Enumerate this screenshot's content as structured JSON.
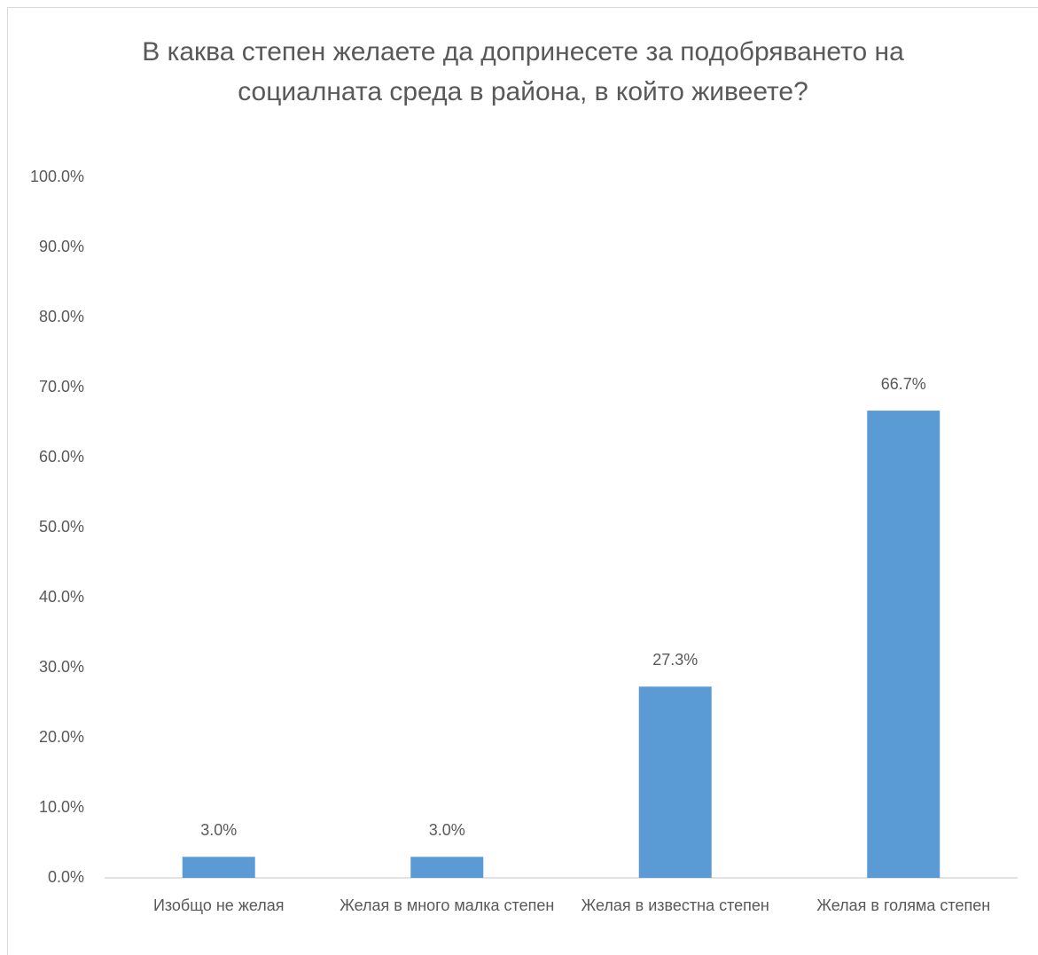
{
  "chart_data": {
    "type": "bar",
    "title": "В каква степен желаете да допринесете за подобряването на социалната среда в района, в който живеете?",
    "categories": [
      "Изобщо не желая",
      "Желая в много малка степен",
      "Желая в известна степен",
      "Желая в голяма степен"
    ],
    "values": [
      3.0,
      3.0,
      27.3,
      66.7
    ],
    "value_labels": [
      "3.0%",
      "3.0%",
      "27.3%",
      "66.7%"
    ],
    "color": "#5b9bd5",
    "ylim": [
      0,
      100
    ],
    "yticks": [
      {
        "value": 0,
        "label": "0.0%"
      },
      {
        "value": 10,
        "label": "10.0%"
      },
      {
        "value": 20,
        "label": "20.0%"
      },
      {
        "value": 30,
        "label": "30.0%"
      },
      {
        "value": 40,
        "label": "40.0%"
      },
      {
        "value": 50,
        "label": "50.0%"
      },
      {
        "value": 60,
        "label": "60.0%"
      },
      {
        "value": 70,
        "label": "70.0%"
      },
      {
        "value": 80,
        "label": "80.0%"
      },
      {
        "value": 90,
        "label": "90.0%"
      },
      {
        "value": 100,
        "label": "100.0%"
      }
    ],
    "grid": false
  }
}
